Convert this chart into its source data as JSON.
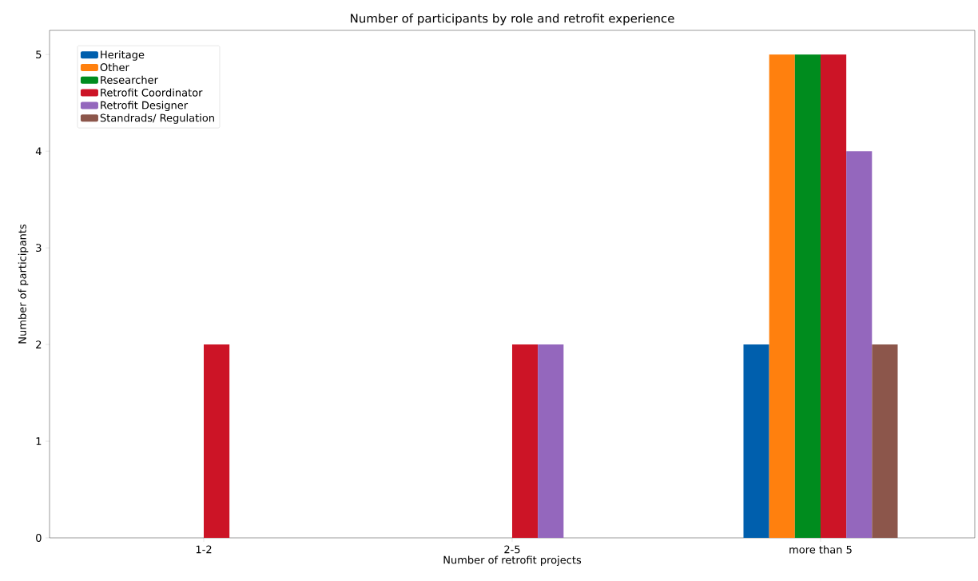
{
  "chart_data": {
    "type": "bar",
    "title": "Number of participants by role and retrofit experience",
    "xlabel": "Number of retrofit projects",
    "ylabel": "Number of participants",
    "categories": [
      "1-2",
      "2-5",
      "more than 5"
    ],
    "series": [
      {
        "name": "Heritage",
        "color": "#005fad",
        "values": [
          0,
          0,
          2
        ]
      },
      {
        "name": "Other",
        "color": "#ff800e",
        "values": [
          0,
          0,
          5
        ]
      },
      {
        "name": "Researcher",
        "color": "#008c1e",
        "values": [
          0,
          0,
          5
        ]
      },
      {
        "name": "Retrofit Coordinator",
        "color": "#cc1426",
        "values": [
          2,
          2,
          5
        ]
      },
      {
        "name": "Retrofit Designer",
        "color": "#9467bd",
        "values": [
          0,
          2,
          4
        ]
      },
      {
        "name": "Standrads/ Regulation",
        "color": "#8c564b",
        "values": [
          0,
          0,
          2
        ]
      }
    ],
    "ylim": [
      0,
      5.25
    ],
    "yticks": [
      0,
      1,
      2,
      3,
      4,
      5
    ],
    "grid": false,
    "legend": "top left"
  }
}
